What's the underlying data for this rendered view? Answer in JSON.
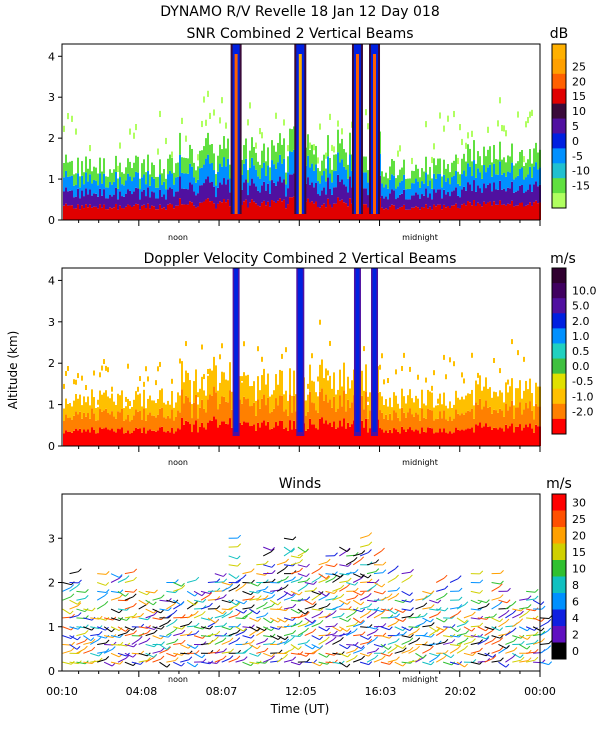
{
  "header": {
    "title": "DYNAMO R/V Revelle  18 Jan 12 Day 018"
  },
  "chart_data": [
    {
      "type": "heatmap",
      "title": "SNR Combined 2 Vertical Beams",
      "ylabel": "",
      "ylim": [
        0,
        4.3
      ],
      "yticks": [
        "0",
        "1",
        "2",
        "3",
        "4"
      ],
      "xmarks": [
        "noon",
        "midnight"
      ],
      "colorbar": {
        "unit": "dB",
        "labels": [
          "25",
          "20",
          "15",
          "10",
          "5",
          "0",
          "-5",
          "-10",
          "-15"
        ],
        "colors": [
          "#ffb000",
          "#ffa000",
          "#ff6000",
          "#e00000",
          "#3a0a3a",
          "#5010a0",
          "#0020e0",
          "#0090ff",
          "#20c0d0",
          "#60e040",
          "#b0ff60"
        ]
      }
    },
    {
      "type": "heatmap",
      "title": "Doppler Velocity Combined 2 Vertical Beams",
      "ylabel": "Altitude (km)",
      "ylim": [
        0,
        4.3
      ],
      "yticks": [
        "0",
        "1",
        "2",
        "3",
        "4"
      ],
      "xmarks": [
        "noon",
        "midnight"
      ],
      "colorbar": {
        "unit": "m/s",
        "labels": [
          "10.0",
          "5.0",
          "2.0",
          "1.0",
          "0.5",
          "0.0",
          "-0.5",
          "-1.0",
          "-2.0"
        ],
        "colors": [
          "#300030",
          "#400060",
          "#5010a0",
          "#0020e0",
          "#0090ff",
          "#20d0c0",
          "#40c040",
          "#e0e000",
          "#ffc000",
          "#ff8000",
          "#ff0000"
        ]
      }
    },
    {
      "type": "scatter",
      "title": "Winds",
      "xlabel": "Time (UT)",
      "ylim": [
        0,
        4
      ],
      "yticks": [
        "0",
        "1",
        "2",
        "3"
      ],
      "xticks": [
        "00:10",
        "04:08",
        "08:07",
        "12:05",
        "16:03",
        "20:02",
        "00:00"
      ],
      "xmarks": [
        "noon",
        "midnight"
      ],
      "colorbar": {
        "unit": "m/s",
        "labels": [
          "30",
          "25",
          "20",
          "15",
          "10",
          "8",
          "6",
          "4",
          "2",
          "0"
        ],
        "colors": [
          "#ff0000",
          "#ff5000",
          "#ffa000",
          "#d0d000",
          "#30c030",
          "#10c0c0",
          "#0090ff",
          "#1020e0",
          "#6010c0",
          "#000000"
        ]
      }
    }
  ]
}
